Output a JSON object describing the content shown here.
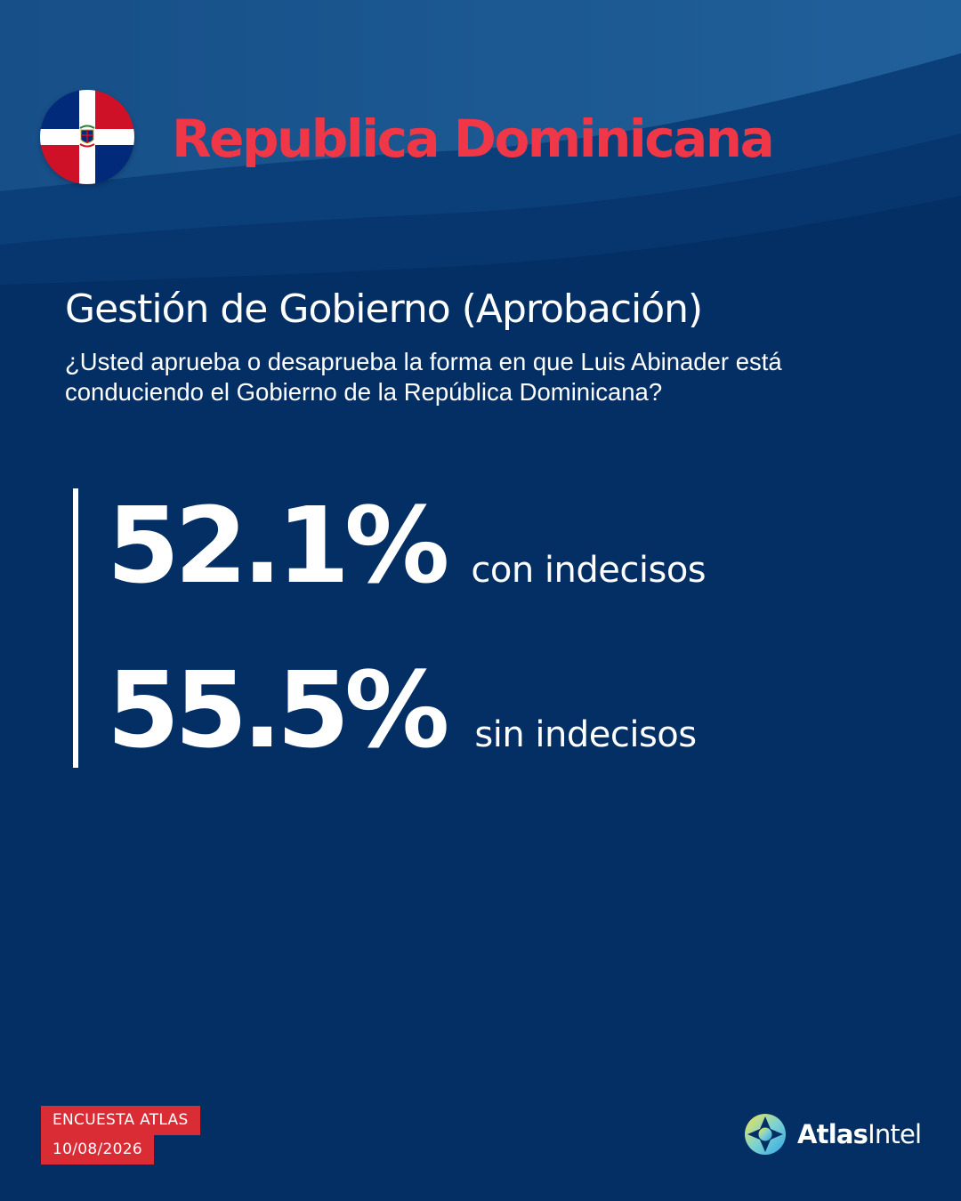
{
  "colors": {
    "background": "#032f65",
    "wave_light": "#1b5a93",
    "wave_mid": "#0f4680",
    "accent_red": "#ef3748",
    "badge_red": "#d92c35",
    "white": "#ffffff",
    "flag_blue": "#012a7a",
    "flag_red": "#ce1126"
  },
  "header": {
    "flag_icon": "dominican-republic-flag-icon",
    "country": "Republica Dominicana"
  },
  "section": {
    "title": "Gestión de Gobierno (Aprobación)",
    "question": "¿Usted aprueba o desaprueba la forma en que Luis Abinader está conduciendo el Gobierno de la República Dominicana?"
  },
  "stats": [
    {
      "value": "52.1%",
      "label": "con indecisos"
    },
    {
      "value": "55.5%",
      "label": "sin indecisos"
    }
  ],
  "badge": {
    "line1": "ENCUESTA ATLAS",
    "line2": "10/08/2026"
  },
  "logo": {
    "icon": "atlasintel-compass-icon",
    "word1": "Atlas",
    "word2": "Intel"
  }
}
